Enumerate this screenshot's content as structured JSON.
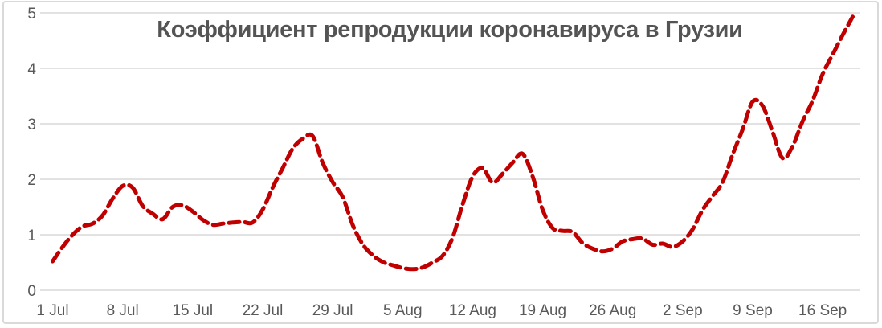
{
  "chart_data": {
    "type": "line",
    "title": "Коэффициент репродукции коронавируса в Грузии",
    "xlabel": "",
    "ylabel": "",
    "x_interval": "daily, index = days since first tick (1 Jul)",
    "values": [
      0.52,
      0.78,
      1.0,
      1.15,
      1.2,
      1.35,
      1.65,
      1.88,
      1.85,
      1.52,
      1.38,
      1.28,
      1.5,
      1.53,
      1.42,
      1.27,
      1.18,
      1.2,
      1.22,
      1.23,
      1.22,
      1.45,
      1.85,
      2.2,
      2.55,
      2.73,
      2.78,
      2.3,
      1.95,
      1.68,
      1.18,
      0.83,
      0.63,
      0.51,
      0.45,
      0.4,
      0.38,
      0.41,
      0.5,
      0.62,
      0.95,
      1.55,
      2.05,
      2.2,
      1.94,
      2.1,
      2.3,
      2.46,
      2.05,
      1.45,
      1.12,
      1.07,
      1.05,
      0.85,
      0.75,
      0.7,
      0.75,
      0.88,
      0.92,
      0.93,
      0.82,
      0.84,
      0.78,
      0.88,
      1.1,
      1.45,
      1.7,
      1.95,
      2.45,
      2.9,
      3.4,
      3.32,
      2.85,
      2.38,
      2.6,
      3.05,
      3.42,
      3.9,
      4.25,
      4.6,
      4.93
    ],
    "xtick_positions": [
      0,
      7,
      14,
      21,
      28,
      35,
      42,
      49,
      56,
      63,
      70,
      77
    ],
    "xtick_labels": [
      "1 Jul",
      "8 Jul",
      "15 Jul",
      "22 Jul",
      "29 Jul",
      "5 Aug",
      "12 Aug",
      "19 Aug",
      "26 Aug",
      "2 Sep",
      "9 Sep",
      "16 Sep"
    ],
    "yticks": [
      "0",
      "1",
      "2",
      "3",
      "4",
      "5"
    ],
    "ylim": [
      0,
      5
    ],
    "grid": "horizontal",
    "legend": "none",
    "line_style": "dashed",
    "line_color": "#C00000",
    "grid_color": "#D9D9D9",
    "tick_label_color": "#595959",
    "title_color": "#545454",
    "border_color": "#D9D9D9",
    "background_color": "#FFFFFF"
  }
}
